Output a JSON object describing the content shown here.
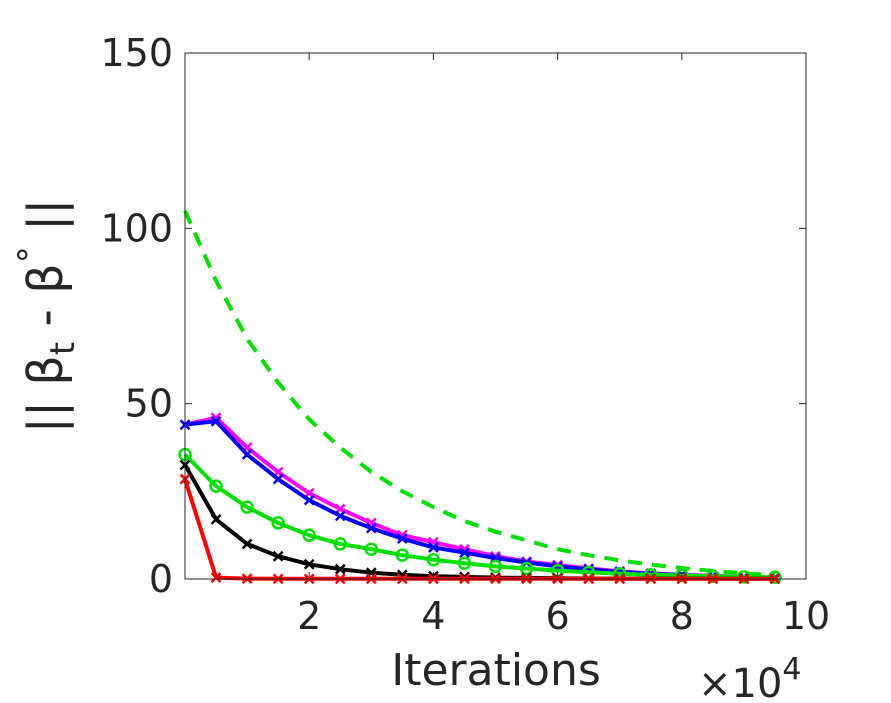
{
  "chart_data": {
    "type": "line",
    "title": "",
    "xlabel": "Iterations",
    "x_exponent_label": "×10",
    "x_exponent_power": "4",
    "ylabel": "|| β",
    "ylabel_subscript": "t",
    "ylabel_tail": " - β",
    "ylabel_superscript": "°",
    "ylabel_end": " ||",
    "xlim": [
      0.0,
      10.0
    ],
    "ylim": [
      0,
      150
    ],
    "xticks": [
      2,
      4,
      6,
      8,
      10
    ],
    "xtick_labels": [
      "2",
      "4",
      "6",
      "8",
      "10"
    ],
    "yticks": [
      0,
      50,
      100,
      150
    ],
    "ytick_labels": [
      "0",
      "50",
      "100",
      "150"
    ],
    "grid": false,
    "legend": "none",
    "series": [
      {
        "color": "#00e000",
        "style": "dashed",
        "marker": "none",
        "x": [
          0.0,
          0.5,
          1.0,
          1.5,
          2.0,
          2.5,
          3.0,
          3.5,
          4.0,
          4.5,
          5.0,
          5.5,
          6.0,
          6.5,
          7.0,
          7.5,
          8.0,
          8.5,
          9.0,
          9.5
        ],
        "y": [
          105,
          85,
          68.5,
          56,
          45.5,
          37.5,
          30.5,
          25,
          20.5,
          16.5,
          13.5,
          11,
          8.5,
          6.8,
          5.3,
          4.1,
          3.1,
          2.3,
          1.6,
          1.1
        ]
      },
      {
        "color": "#ff00ff",
        "style": "solid",
        "marker": "x",
        "x": [
          0.0,
          0.5,
          1.0,
          1.5,
          2.0,
          2.5,
          3.0,
          3.5,
          4.0,
          4.5,
          5.0,
          5.5,
          6.0,
          6.5,
          7.0,
          7.5,
          8.0,
          8.5,
          9.0,
          9.5
        ],
        "y": [
          44,
          46,
          37.5,
          30.5,
          24.5,
          20,
          16,
          12.5,
          10.5,
          8.5,
          6.5,
          5,
          4,
          3,
          2.2,
          1.6,
          1.2,
          0.9,
          0.6,
          0.4
        ]
      },
      {
        "color": "#0000ff",
        "style": "solid",
        "marker": "x",
        "x": [
          0.0,
          0.5,
          1.0,
          1.5,
          2.0,
          2.5,
          3.0,
          3.5,
          4.0,
          4.5,
          5.0,
          5.5,
          6.0,
          6.5,
          7.0,
          7.5,
          8.0,
          8.5,
          9.0,
          9.5
        ],
        "y": [
          44,
          45,
          35.5,
          28.5,
          22.5,
          18,
          14.5,
          11.5,
          9,
          7.5,
          6,
          4.7,
          3.6,
          2.8,
          2,
          1.5,
          1.1,
          0.8,
          0.5,
          0.3
        ]
      },
      {
        "color": "#00e000",
        "style": "solid",
        "marker": "o",
        "x": [
          0.0,
          0.5,
          1.0,
          1.5,
          2.0,
          2.5,
          3.0,
          3.5,
          4.0,
          4.5,
          5.0,
          5.5,
          6.0,
          6.5,
          7.0,
          7.5,
          8.0,
          8.5,
          9.0,
          9.5
        ],
        "y": [
          35.5,
          26.5,
          20.5,
          16,
          12.5,
          10,
          8.5,
          6.8,
          5.5,
          4.5,
          3.6,
          3,
          2.4,
          1.9,
          1.5,
          1.2,
          1,
          0.8,
          0.6,
          0.5
        ]
      },
      {
        "color": "#000000",
        "style": "solid",
        "marker": "x",
        "x": [
          0.0,
          0.5,
          1.0,
          1.5,
          2.0,
          2.5,
          3.0,
          3.5,
          4.0,
          4.5,
          5.0,
          5.5,
          6.0,
          6.5,
          7.0,
          7.5,
          8.0,
          8.5,
          9.0,
          9.5
        ],
        "y": [
          32.5,
          17,
          10,
          6.5,
          4.2,
          2.8,
          1.8,
          1.2,
          0.8,
          0.6,
          0.4,
          0.3,
          0.2,
          0.15,
          0.1,
          0.1,
          0.1,
          0.05,
          0.05,
          0.05
        ]
      },
      {
        "color": "#ff0000",
        "style": "solid",
        "marker": "x",
        "x": [
          0.0,
          0.5,
          1.0,
          1.5,
          2.0,
          2.5,
          3.0,
          3.5,
          4.0,
          4.5,
          5.0,
          5.5,
          6.0,
          6.5,
          7.0,
          7.5,
          8.0,
          8.5,
          9.0,
          9.5
        ],
        "y": [
          28.5,
          0.4,
          0.1,
          0.05,
          0.05,
          0.05,
          0.05,
          0.05,
          0.05,
          0.05,
          0.05,
          0.05,
          0.05,
          0.05,
          0.05,
          0.05,
          0.05,
          0.05,
          0.05,
          0.05
        ]
      }
    ]
  }
}
